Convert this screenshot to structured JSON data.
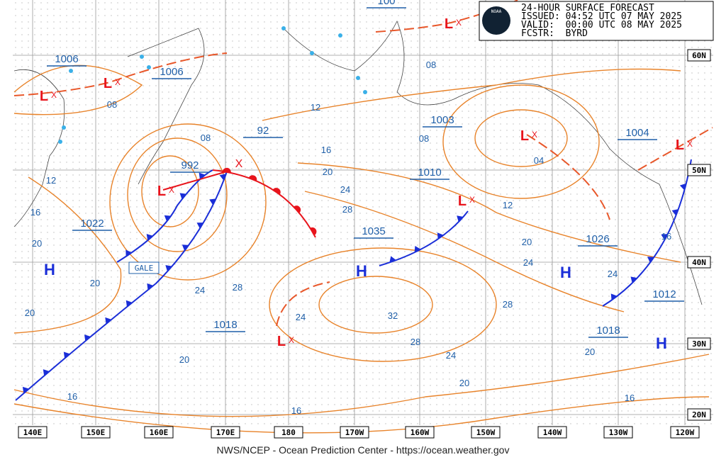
{
  "header": {
    "lines": [
      "24-HOUR SURFACE FORECAST",
      "ISSUED: 04:52 UTC 07 MAY 2025",
      "VALID:  00:00 UTC 08 MAY 2025",
      "FCSTR:  BYRD"
    ],
    "logo": "NOAA"
  },
  "footer": "NWS/NCEP - Ocean Prediction Center - https://ocean.weather.gov",
  "axes": {
    "longitude": [
      "140E",
      "150E",
      "160E",
      "170E",
      "180",
      "170W",
      "160W",
      "150W",
      "140W",
      "130W",
      "120W"
    ],
    "latitude": [
      "60N",
      "50N",
      "40N",
      "30N",
      "20N"
    ]
  },
  "pressure_labels": [
    "1006",
    "1006",
    "992",
    "92",
    "1003",
    "1010",
    "1004",
    "1022",
    "1035",
    "1026",
    "1012",
    "1018",
    "1018",
    "100"
  ],
  "isobar_labels": [
    "08",
    "08",
    "12",
    "16",
    "20",
    "24",
    "28",
    "12",
    "16",
    "20",
    "20",
    "20",
    "24",
    "28",
    "24",
    "32",
    "28",
    "24",
    "20",
    "28",
    "24",
    "20",
    "12",
    "04",
    "08",
    "08",
    "16",
    "24",
    "20",
    "16",
    "16",
    "16",
    "20"
  ],
  "symbols": {
    "high": "H",
    "low": "L",
    "cross": "X",
    "gale": "GALE"
  }
}
